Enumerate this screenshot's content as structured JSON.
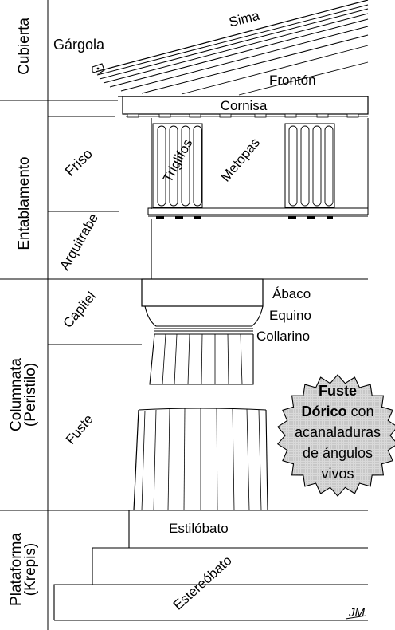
{
  "sections": [
    {
      "label": "Cubierta"
    },
    {
      "label": "Entablamento"
    },
    {
      "label": "Columnata",
      "sublabel": "(Peristilo)"
    },
    {
      "label": "Plataforma",
      "sublabel": "(Krepis)"
    }
  ],
  "subsections": {
    "gargola": "Gárgola",
    "friso": "Friso",
    "arquitrabe": "Arquitrabe",
    "capitel": "Capitel",
    "fuste": "Fuste"
  },
  "parts": {
    "sima": "Sima",
    "fronton": "Frontón",
    "cornisa": "Cornisa",
    "triglifos": "Triglifos",
    "metopas": "Metopas",
    "abaco": "Ábaco",
    "equino": "Equino",
    "collarino": "Collarino",
    "estilobato": "Estilóbato",
    "estereobato": "Estereóbato"
  },
  "callout": {
    "line1_bold": "Fuste",
    "line2_bold": "Dórico",
    "line2_rest": " con",
    "line3": "acanaladuras",
    "line4": "de ángulos",
    "line5": "vivos"
  },
  "signature": "JM"
}
